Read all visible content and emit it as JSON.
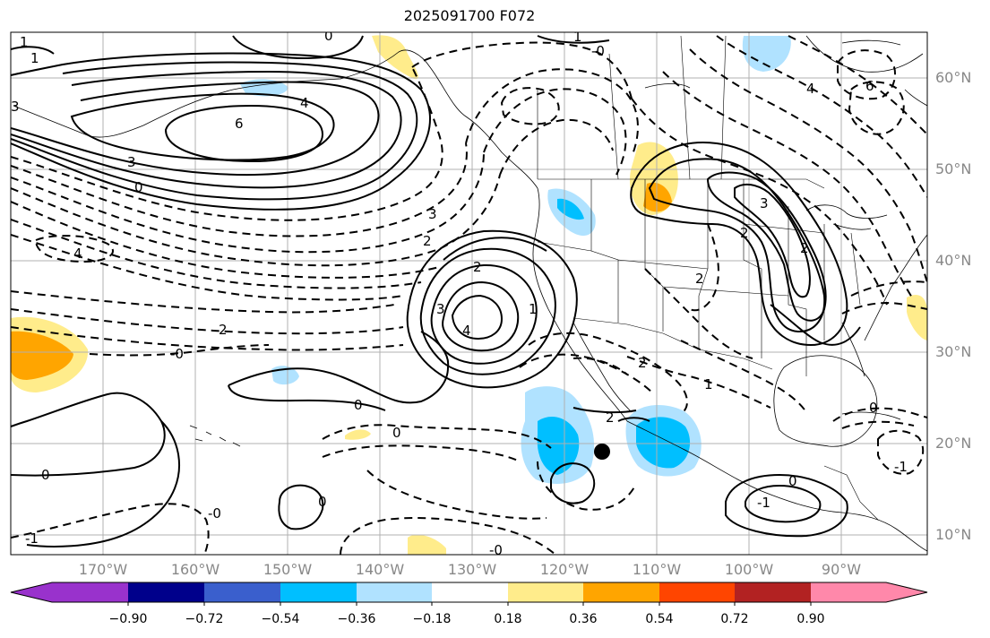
{
  "title": "2025091700 F072",
  "map": {
    "lat_labels": [
      "60°N",
      "50°N",
      "40°N",
      "30°N",
      "20°N",
      "10°N"
    ],
    "lon_labels": [
      "170°W",
      "160°W",
      "150°W",
      "140°W",
      "130°W",
      "120°W",
      "110°W",
      "100°W",
      "90°W"
    ],
    "contour_labels": {
      "four_north": "4",
      "six_north": "6",
      "three_north": "3",
      "zero_north": "0",
      "neg4_west": "4",
      "two_mid": "2",
      "zero_mid": "-0",
      "zero_center": "0",
      "zero_south_w": "0",
      "neg0_south": "-0",
      "neg1_sw": "-1",
      "zero_small": "0",
      "zero_small2": "-0",
      "low_four": "4",
      "low_three": "3",
      "low_two": "2",
      "low_two_b": "2",
      "low_one": "1",
      "low_three_b": "3",
      "two_baja": "2",
      "two_baja_b": "2",
      "two_mex": "2",
      "one_mex": "1",
      "neg1_pac": "-1",
      "zero_pac": "0",
      "neg_one_gulf": "-1",
      "zero_gulf": "0",
      "neg2_us": "2",
      "three_us": "3",
      "two_us": "2",
      "zero_us": "0",
      "six_ne": "6",
      "four_ne": "4",
      "zero_top": "0",
      "one_top": "1",
      "neg0_top": "-0",
      "one_topleft": "1",
      "one_topleft2": "1",
      "three_left": "3"
    },
    "storm_marker": "tropical-cyclone-position"
  },
  "colorbar": {
    "ticks": [
      "−0.90",
      "−0.72",
      "−0.54",
      "−0.36",
      "−0.18",
      "0.18",
      "0.36",
      "0.54",
      "0.72",
      "0.90"
    ],
    "colors": [
      "#9932cc",
      "#00008b",
      "#3a5fcd",
      "#00bfff",
      "#b0e2ff",
      "#ffffff",
      "#ffec8b",
      "#ffa500",
      "#ff4500",
      "#b22222",
      "#ff88aa"
    ]
  }
}
